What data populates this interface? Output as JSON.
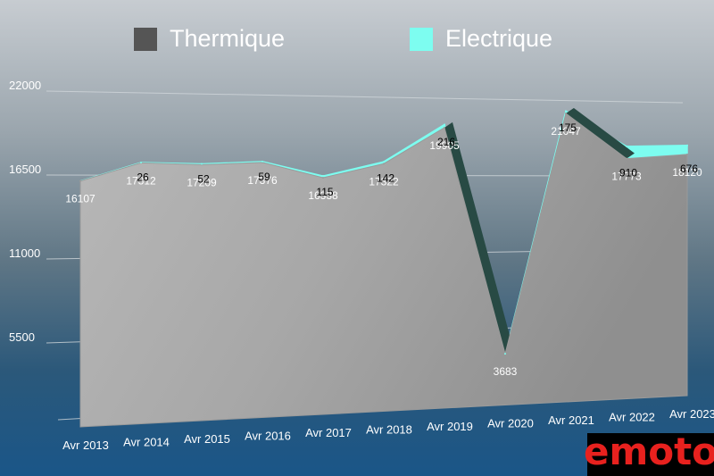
{
  "legend": {
    "thermique": "Thermique",
    "electrique": "Electrique"
  },
  "colors": {
    "thermique_fill": "#aaaaaa",
    "thermique_swatch": "#555555",
    "thermique_side": "#284a44",
    "electrique": "#7dfdf0",
    "gridline": "#d0d6da",
    "axis_text": "#ffffff",
    "value_text": "#000000",
    "logo_text": "#e8211e",
    "logo_bg": "#000000"
  },
  "logo": "emoto",
  "chart_data": {
    "type": "area",
    "stacked": true,
    "categories": [
      "Avr 2013",
      "Avr 2014",
      "Avr 2015",
      "Avr 2016",
      "Avr 2017",
      "Avr 2018",
      "Avr 2019",
      "Avr 2020",
      "Avr 2021",
      "Avr 2022",
      "Avr 2023"
    ],
    "series": [
      {
        "name": "Thermique",
        "values": [
          16107,
          17312,
          17209,
          17376,
          16338,
          17322,
          19905,
          3683,
          21047,
          17773,
          18120
        ],
        "labels": [
          "16107",
          "17312",
          "17209",
          "17376",
          "16338",
          "17322",
          "19905",
          "3683",
          "21047",
          "17773",
          "18120"
        ]
      },
      {
        "name": "Electrique",
        "values": [
          null,
          26,
          52,
          59,
          115,
          142,
          216,
          3,
          175,
          910,
          676
        ],
        "labels": [
          "",
          "26",
          "52",
          "59",
          "115",
          "142",
          "216",
          "",
          "175",
          "910",
          "676"
        ]
      }
    ],
    "yticks": [
      5500,
      11000,
      16500,
      22000
    ],
    "yticklabels": [
      "5500",
      "11000",
      "16500",
      "22000"
    ],
    "ylim": [
      0,
      22000
    ],
    "grid": true,
    "legend_position": "top"
  }
}
